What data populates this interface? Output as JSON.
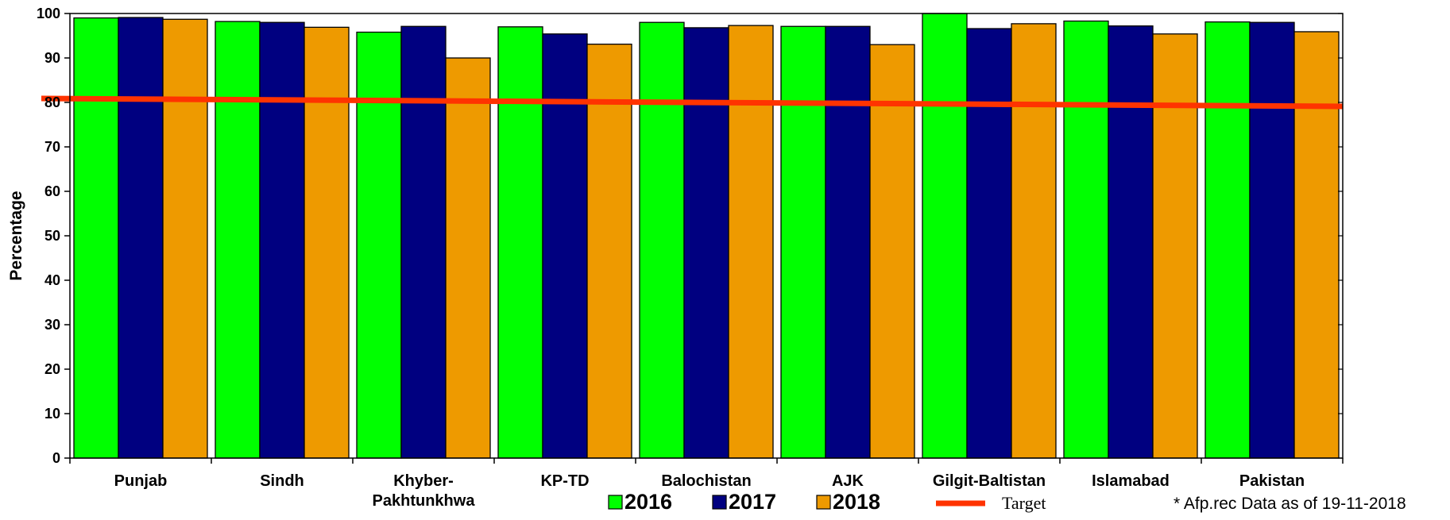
{
  "chart_data": {
    "type": "bar",
    "title": "",
    "xlabel": "",
    "ylabel": "Percentage",
    "ylim": [
      0,
      100
    ],
    "yticks": [
      0,
      10,
      20,
      30,
      40,
      50,
      60,
      70,
      80,
      90,
      100
    ],
    "grid": false,
    "legend_position": "bottom",
    "categories": [
      "Punjab",
      "Sindh",
      "Khyber-Pakhtunkhwa",
      "KP-TD",
      "Balochistan",
      "AJK",
      "Gilgit-Baltistan",
      "Islamabad",
      "Pakistan"
    ],
    "category_lines": [
      [
        "Punjab"
      ],
      [
        "Sindh"
      ],
      [
        "Khyber-",
        "Pakhtunkhwa"
      ],
      [
        "KP-TD"
      ],
      [
        "Balochistan"
      ],
      [
        "AJK"
      ],
      [
        "Gilgit-Baltistan"
      ],
      [
        "Islamabad"
      ],
      [
        "Pakistan"
      ]
    ],
    "series": [
      {
        "name": "2016",
        "color": "#00ff00",
        "values": [
          99.0,
          98.2,
          95.8,
          97.0,
          98.0,
          97.1,
          100.0,
          98.3,
          98.1
        ]
      },
      {
        "name": "2017",
        "color": "#000080",
        "values": [
          99.1,
          98.0,
          97.1,
          95.4,
          96.8,
          97.1,
          96.6,
          97.2,
          98.0
        ]
      },
      {
        "name": "2018",
        "color": "#ee9a00",
        "values": [
          98.7,
          96.9,
          90.0,
          93.1,
          97.3,
          93.0,
          97.7,
          95.4,
          95.9
        ]
      }
    ],
    "target": {
      "name": "Target",
      "value": 80,
      "color": "#ff3300"
    },
    "annotation": "* Afp.rec Data as of  19-11-2018"
  }
}
